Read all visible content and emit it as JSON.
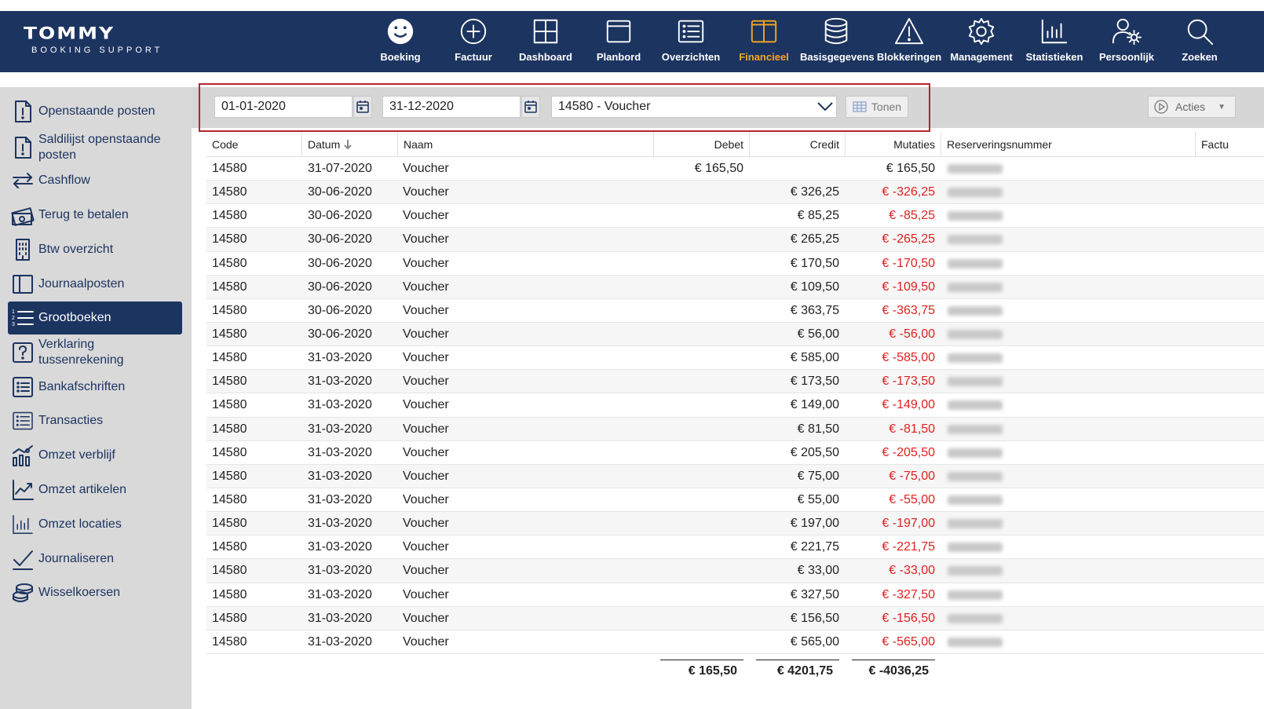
{
  "app": {
    "logo_main": "TOMMY",
    "logo_sub": "BOOKING SUPPORT",
    "brand_color": "#1c3460",
    "active_color": "#f5a623"
  },
  "nav": [
    {
      "label": "Boeking",
      "icon": "smiley-icon"
    },
    {
      "label": "Factuur",
      "icon": "plus-circle-icon"
    },
    {
      "label": "Dashboard",
      "icon": "grid-icon"
    },
    {
      "label": "Planbord",
      "icon": "window-icon"
    },
    {
      "label": "Overzichten",
      "icon": "list-icon"
    },
    {
      "label": "Financieel",
      "icon": "columns-icon",
      "active": true
    },
    {
      "label": "Basisgegevens",
      "icon": "database-icon"
    },
    {
      "label": "Blokkeringen",
      "icon": "warning-icon"
    },
    {
      "label": "Management",
      "icon": "gear-icon"
    },
    {
      "label": "Statistieken",
      "icon": "bar-chart-icon"
    },
    {
      "label": "Persoonlijk",
      "icon": "user-gear-icon"
    },
    {
      "label": "Zoeken",
      "icon": "search-icon"
    }
  ],
  "sidebar": [
    {
      "label": "Openstaande posten",
      "icon": "doc-exclaim-icon"
    },
    {
      "label": "Saldilijst openstaande posten",
      "icon": "doc-exclaim-icon"
    },
    {
      "label": "Cashflow",
      "icon": "arrows-icon"
    },
    {
      "label": "Terug te betalen",
      "icon": "money-icon"
    },
    {
      "label": "Btw overzicht",
      "icon": "building-icon"
    },
    {
      "label": "Journaalposten",
      "icon": "book-icon"
    },
    {
      "label": "Grootboeken",
      "icon": "numbered-list-icon",
      "active": true
    },
    {
      "label": "Verklaring tussenrekening",
      "icon": "question-icon"
    },
    {
      "label": "Bankafschriften",
      "icon": "list-box-icon"
    },
    {
      "label": "Transacties",
      "icon": "list-icon"
    },
    {
      "label": "Omzet verblijf",
      "icon": "chart-people-icon"
    },
    {
      "label": "Omzet artikelen",
      "icon": "trend-icon"
    },
    {
      "label": "Omzet locaties",
      "icon": "bar-chart-icon"
    },
    {
      "label": "Journaliseren",
      "icon": "check-icon"
    },
    {
      "label": "Wisselkoersen",
      "icon": "coins-icon"
    }
  ],
  "filters": {
    "date_from": "01-01-2020",
    "date_to": "31-12-2020",
    "account": "14580 - Voucher",
    "show_button": "Tonen",
    "actions_button": "Acties"
  },
  "table": {
    "headers": [
      "Code",
      "Datum",
      "Naam",
      "Debet",
      "Credit",
      "Mutaties",
      "Reserveringsnummer",
      "Factu"
    ],
    "rows": [
      {
        "code": "14580",
        "datum": "31-07-2020",
        "naam": "Voucher",
        "debet": "€ 165,50",
        "credit": "",
        "mutaties": "€ 165,50",
        "neg": false
      },
      {
        "code": "14580",
        "datum": "30-06-2020",
        "naam": "Voucher",
        "debet": "",
        "credit": "€ 326,25",
        "mutaties": "€ -326,25",
        "neg": true
      },
      {
        "code": "14580",
        "datum": "30-06-2020",
        "naam": "Voucher",
        "debet": "",
        "credit": "€ 85,25",
        "mutaties": "€ -85,25",
        "neg": true
      },
      {
        "code": "14580",
        "datum": "30-06-2020",
        "naam": "Voucher",
        "debet": "",
        "credit": "€ 265,25",
        "mutaties": "€ -265,25",
        "neg": true
      },
      {
        "code": "14580",
        "datum": "30-06-2020",
        "naam": "Voucher",
        "debet": "",
        "credit": "€ 170,50",
        "mutaties": "€ -170,50",
        "neg": true
      },
      {
        "code": "14580",
        "datum": "30-06-2020",
        "naam": "Voucher",
        "debet": "",
        "credit": "€ 109,50",
        "mutaties": "€ -109,50",
        "neg": true
      },
      {
        "code": "14580",
        "datum": "30-06-2020",
        "naam": "Voucher",
        "debet": "",
        "credit": "€ 363,75",
        "mutaties": "€ -363,75",
        "neg": true
      },
      {
        "code": "14580",
        "datum": "30-06-2020",
        "naam": "Voucher",
        "debet": "",
        "credit": "€ 56,00",
        "mutaties": "€ -56,00",
        "neg": true
      },
      {
        "code": "14580",
        "datum": "31-03-2020",
        "naam": "Voucher",
        "debet": "",
        "credit": "€ 585,00",
        "mutaties": "€ -585,00",
        "neg": true
      },
      {
        "code": "14580",
        "datum": "31-03-2020",
        "naam": "Voucher",
        "debet": "",
        "credit": "€ 173,50",
        "mutaties": "€ -173,50",
        "neg": true
      },
      {
        "code": "14580",
        "datum": "31-03-2020",
        "naam": "Voucher",
        "debet": "",
        "credit": "€ 149,00",
        "mutaties": "€ -149,00",
        "neg": true
      },
      {
        "code": "14580",
        "datum": "31-03-2020",
        "naam": "Voucher",
        "debet": "",
        "credit": "€ 81,50",
        "mutaties": "€ -81,50",
        "neg": true
      },
      {
        "code": "14580",
        "datum": "31-03-2020",
        "naam": "Voucher",
        "debet": "",
        "credit": "€ 205,50",
        "mutaties": "€ -205,50",
        "neg": true
      },
      {
        "code": "14580",
        "datum": "31-03-2020",
        "naam": "Voucher",
        "debet": "",
        "credit": "€ 75,00",
        "mutaties": "€ -75,00",
        "neg": true
      },
      {
        "code": "14580",
        "datum": "31-03-2020",
        "naam": "Voucher",
        "debet": "",
        "credit": "€ 55,00",
        "mutaties": "€ -55,00",
        "neg": true
      },
      {
        "code": "14580",
        "datum": "31-03-2020",
        "naam": "Voucher",
        "debet": "",
        "credit": "€ 197,00",
        "mutaties": "€ -197,00",
        "neg": true
      },
      {
        "code": "14580",
        "datum": "31-03-2020",
        "naam": "Voucher",
        "debet": "",
        "credit": "€ 221,75",
        "mutaties": "€ -221,75",
        "neg": true
      },
      {
        "code": "14580",
        "datum": "31-03-2020",
        "naam": "Voucher",
        "debet": "",
        "credit": "€ 33,00",
        "mutaties": "€ -33,00",
        "neg": true
      },
      {
        "code": "14580",
        "datum": "31-03-2020",
        "naam": "Voucher",
        "debet": "",
        "credit": "€ 327,50",
        "mutaties": "€ -327,50",
        "neg": true
      },
      {
        "code": "14580",
        "datum": "31-03-2020",
        "naam": "Voucher",
        "debet": "",
        "credit": "€ 156,50",
        "mutaties": "€ -156,50",
        "neg": true
      },
      {
        "code": "14580",
        "datum": "31-03-2020",
        "naam": "Voucher",
        "debet": "",
        "credit": "€ 565,00",
        "mutaties": "€ -565,00",
        "neg": true
      }
    ],
    "totals": {
      "debet": "€ 165,50",
      "credit": "€ 4201,75",
      "mutaties": "€ -4036,25"
    },
    "negative_color": "#e0201d"
  }
}
